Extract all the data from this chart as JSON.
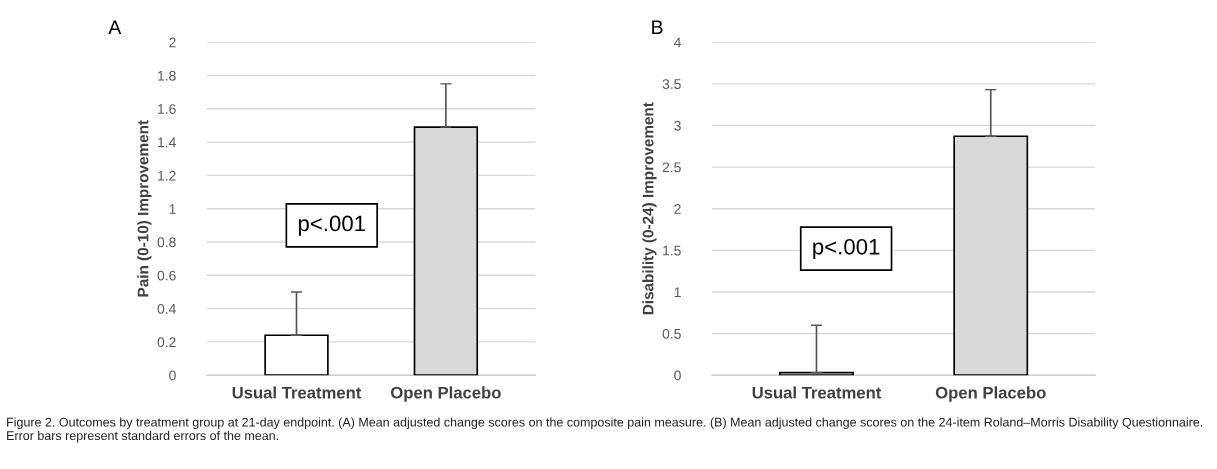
{
  "chart_data": [
    {
      "type": "bar",
      "title": "A",
      "ylabel": "Pain (0-10) Improvement",
      "categories": [
        "Usual Treatment",
        "Open Placebo"
      ],
      "values": [
        0.24,
        1.49
      ],
      "colors": [
        "#ffffff",
        "#d9d9d9"
      ],
      "errors": [
        [
          0.24,
          0.5
        ],
        [
          1.49,
          1.75
        ]
      ],
      "ylim": [
        0,
        2
      ],
      "yticks": [
        0,
        0.2,
        0.4,
        0.6,
        0.8,
        1,
        1.2,
        1.4,
        1.6,
        1.8,
        2
      ],
      "grid": "y",
      "annotations": [
        "p<.001"
      ]
    },
    {
      "type": "bar",
      "title": "B",
      "ylabel": "Disability (0-24) Improvement",
      "categories": [
        "Usual Treatment",
        "Open Placebo"
      ],
      "values": [
        0.03,
        2.87
      ],
      "colors": [
        "#ffffff",
        "#d9d9d9"
      ],
      "errors": [
        [
          0.03,
          0.6
        ],
        [
          2.87,
          3.43
        ]
      ],
      "ylim": [
        0,
        4
      ],
      "yticks": [
        0,
        0.5,
        1,
        1.5,
        2,
        2.5,
        3,
        3.5,
        4
      ],
      "grid": "y",
      "annotations": [
        "p<.001",
        "Figure 2. Outcomes by treatment group at 21-day endpoint. (A) Mean adjusted change scores on the composite pain measure. (B) Mean adjusted change scores on the 24-item Roland–Morris Disability Questionnaire. Error bars represent standard errors of the mean."
      ]
    }
  ]
}
